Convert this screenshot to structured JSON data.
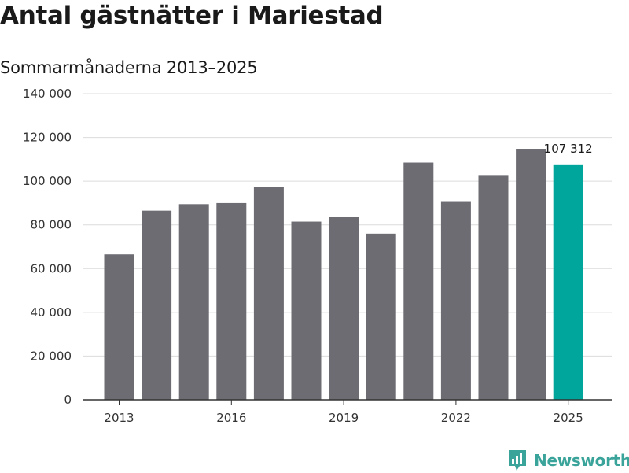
{
  "header": {
    "title": "Antal gästnätter i Mariestad",
    "subtitle": "Sommarmånaderna 2013–2025"
  },
  "chart_data": {
    "type": "bar",
    "title": "Antal gästnätter i Mariestad",
    "subtitle": "Sommarmånaderna 2013–2025",
    "xlabel": "",
    "ylabel": "",
    "categories": [
      "2013",
      "2014",
      "2015",
      "2016",
      "2017",
      "2018",
      "2019",
      "2020",
      "2021",
      "2022",
      "2023",
      "2024",
      "2025"
    ],
    "values": [
      66500,
      86500,
      89500,
      90000,
      97500,
      81500,
      83500,
      76000,
      108500,
      90500,
      102800,
      114800,
      107312
    ],
    "x_tick_labels": [
      "2013",
      "2016",
      "2019",
      "2022",
      "2025"
    ],
    "y_ticks": [
      0,
      20000,
      40000,
      60000,
      80000,
      100000,
      120000,
      140000
    ],
    "y_tick_labels": [
      "0",
      "20 000",
      "40 000",
      "60 000",
      "80 000",
      "100 000",
      "120 000",
      "140 000"
    ],
    "ylim": [
      0,
      140000
    ],
    "grid": true,
    "annotations": [
      {
        "category": "2025",
        "text": "107 312"
      }
    ],
    "colors": {
      "bar": "#6d6c72",
      "highlight": "#00a59b",
      "grid": "#dcdcdc",
      "axis": "#333333"
    },
    "highlight_category": "2025"
  },
  "branding": {
    "name": "Newsworthy",
    "icon": "newsworthy-logo-icon",
    "color": "#3aa39a"
  }
}
